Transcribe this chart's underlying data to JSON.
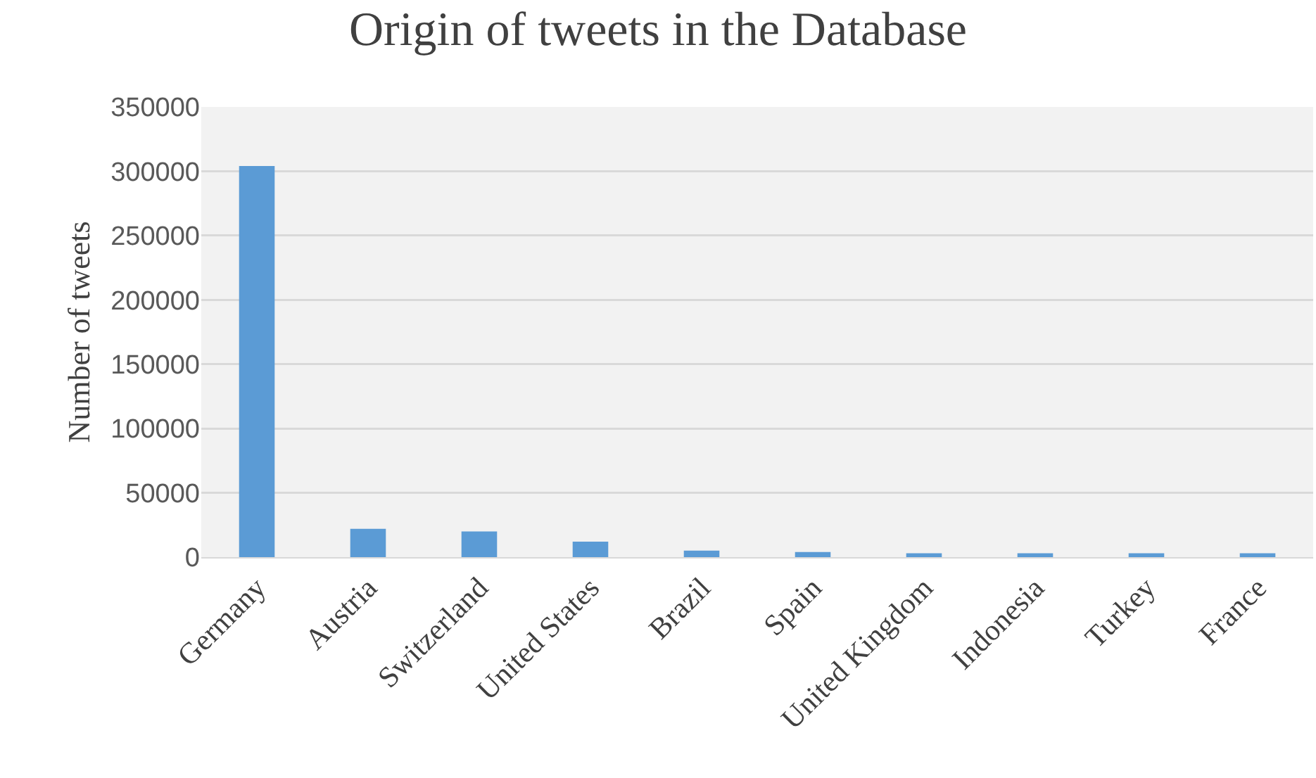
{
  "chart_data": {
    "type": "bar",
    "title": "Origin of tweets in the Database",
    "ylabel": "Number of tweets",
    "categories": [
      "Germany",
      "Austria",
      "Switzerland",
      "United States",
      "Brazil",
      "Spain",
      "United Kingdom",
      "Indonesia",
      "Turkey",
      "France"
    ],
    "values": [
      304000,
      22000,
      20000,
      12000,
      5000,
      4000,
      3000,
      3000,
      3000,
      3000
    ],
    "color": "#5b9bd5",
    "ylim": [
      0,
      350000
    ],
    "yticks": [
      0,
      50000,
      100000,
      150000,
      200000,
      250000,
      300000,
      350000
    ],
    "grid": "y"
  }
}
